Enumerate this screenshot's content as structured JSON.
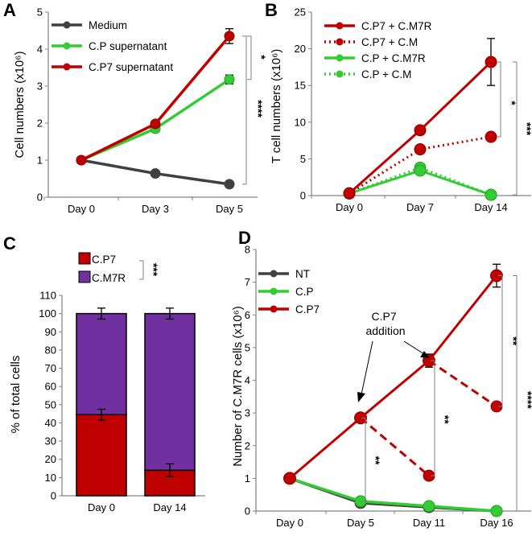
{
  "colors": {
    "medium": "#404040",
    "cp": "#33cc33",
    "cp7": "#c00000",
    "cm7r": "#7030a0",
    "axis": "#808080",
    "sig": "#808080"
  },
  "chart_data": [
    {
      "panel": "A",
      "type": "line",
      "ylabel": "Cell numbers (x10⁶)",
      "categories": [
        "Day 0",
        "Day 3",
        "Day 5"
      ],
      "ylim": [
        0,
        5
      ],
      "yticks": [
        "0",
        "1",
        "2",
        "3",
        "4",
        "5"
      ],
      "series": [
        {
          "name": "Medium",
          "color": "medium",
          "values": [
            1.0,
            0.64,
            0.35
          ],
          "errors": [
            0,
            0,
            0
          ]
        },
        {
          "name": "C.P supernatant",
          "color": "cp",
          "values": [
            1.0,
            1.85,
            3.18
          ],
          "errors": [
            0,
            0.05,
            0.12
          ]
        },
        {
          "name": "C.P7 supernatant",
          "color": "cp7",
          "values": [
            1.0,
            1.98,
            4.35
          ],
          "errors": [
            0,
            0.05,
            0.2
          ]
        }
      ],
      "significance": [
        {
          "label": "*",
          "between": [
            "C.P supernatant",
            "C.P7 supernatant"
          ],
          "at": "Day 5"
        },
        {
          "label": "****",
          "between": [
            "Medium",
            "C.P7 supernatant"
          ],
          "at": "Day 5"
        }
      ]
    },
    {
      "panel": "B",
      "type": "line",
      "ylabel": "T cell numbers (x10⁶)",
      "categories": [
        "Day 0",
        "Day 7",
        "Day 14"
      ],
      "ylim": [
        0,
        25
      ],
      "yticks": [
        "0",
        "5",
        "10",
        "15",
        "20",
        "25"
      ],
      "series": [
        {
          "name": "C.P7 + C.M7R",
          "color": "cp7",
          "style": "solid",
          "values": [
            0.3,
            8.9,
            18.2
          ],
          "errors": [
            0,
            0.3,
            3.2
          ]
        },
        {
          "name": "C.P7 + C.M",
          "color": "cp7",
          "style": "dotted",
          "values": [
            0.3,
            6.3,
            8.0
          ],
          "errors": [
            0,
            0,
            0
          ]
        },
        {
          "name": "C.P + C.M7R",
          "color": "cp",
          "style": "solid",
          "values": [
            0.3,
            3.4,
            0.1
          ],
          "errors": [
            0,
            0,
            0
          ]
        },
        {
          "name": "C.P + C.M",
          "color": "cp",
          "style": "dotted",
          "values": [
            0.3,
            3.8,
            0.1
          ],
          "errors": [
            0,
            0,
            0
          ]
        }
      ],
      "significance": [
        {
          "label": "*",
          "between": [
            "C.P7 + C.M7R",
            "C.P7 + C.M"
          ],
          "at": "Day 14"
        },
        {
          "label": "***",
          "between": [
            "C.P7 + C.M7R",
            "C.P + C.M7R"
          ],
          "at": "Day 14"
        }
      ]
    },
    {
      "panel": "C",
      "type": "bar",
      "stacked": true,
      "ylabel": "% of total cells",
      "categories": [
        "Day 0",
        "Day 14"
      ],
      "ylim": [
        0,
        110
      ],
      "yticks": [
        "0",
        "10",
        "20",
        "30",
        "40",
        "50",
        "60",
        "70",
        "80",
        "90",
        "100",
        "110"
      ],
      "series": [
        {
          "name": "C.P7",
          "color": "cp7",
          "values": [
            44.5,
            14.0
          ],
          "errors": [
            3.0,
            3.5
          ]
        },
        {
          "name": "C.M7R",
          "color": "cm7r",
          "values": [
            55.5,
            86.0
          ],
          "errors": [
            3.0,
            3.0
          ]
        }
      ],
      "significance": [
        {
          "label": "***",
          "between": [
            "C.P7",
            "C.M7R"
          ]
        }
      ]
    },
    {
      "panel": "D",
      "type": "line",
      "ylabel": "Number of C.M7R cells (x10⁶)",
      "categories": [
        "Day 0",
        "Day 5",
        "Day 11",
        "Day 16"
      ],
      "ylim": [
        0,
        8
      ],
      "yticks": [
        "0",
        "1",
        "2",
        "3",
        "4",
        "5",
        "6",
        "7",
        "8"
      ],
      "series": [
        {
          "name": "NT",
          "color": "medium",
          "values": [
            1.0,
            0.25,
            0.12,
            0.0
          ],
          "errors": [
            0,
            0,
            0,
            0
          ]
        },
        {
          "name": "C.P",
          "color": "cp",
          "values": [
            1.0,
            0.3,
            0.15,
            0.0
          ],
          "errors": [
            0,
            0,
            0,
            0
          ]
        },
        {
          "name": "C.P7",
          "color": "cp7",
          "values": [
            1.0,
            2.85,
            4.6,
            7.2
          ],
          "errors": [
            0,
            0,
            0.2,
            0.35
          ]
        }
      ],
      "addition_branches": [
        {
          "from": "Day 5",
          "start": 2.85,
          "to": "Day 11",
          "end": 1.08
        },
        {
          "from": "Day 11",
          "start": 4.6,
          "to": "Day 16",
          "end": 3.2
        }
      ],
      "annotation": "C.P7 addition",
      "significance": [
        {
          "label": "**",
          "at": "Day 5"
        },
        {
          "label": "**",
          "at": "Day 11"
        },
        {
          "label": "**",
          "at": "Day 16"
        },
        {
          "label": "****",
          "at": "Day 16"
        }
      ]
    }
  ]
}
